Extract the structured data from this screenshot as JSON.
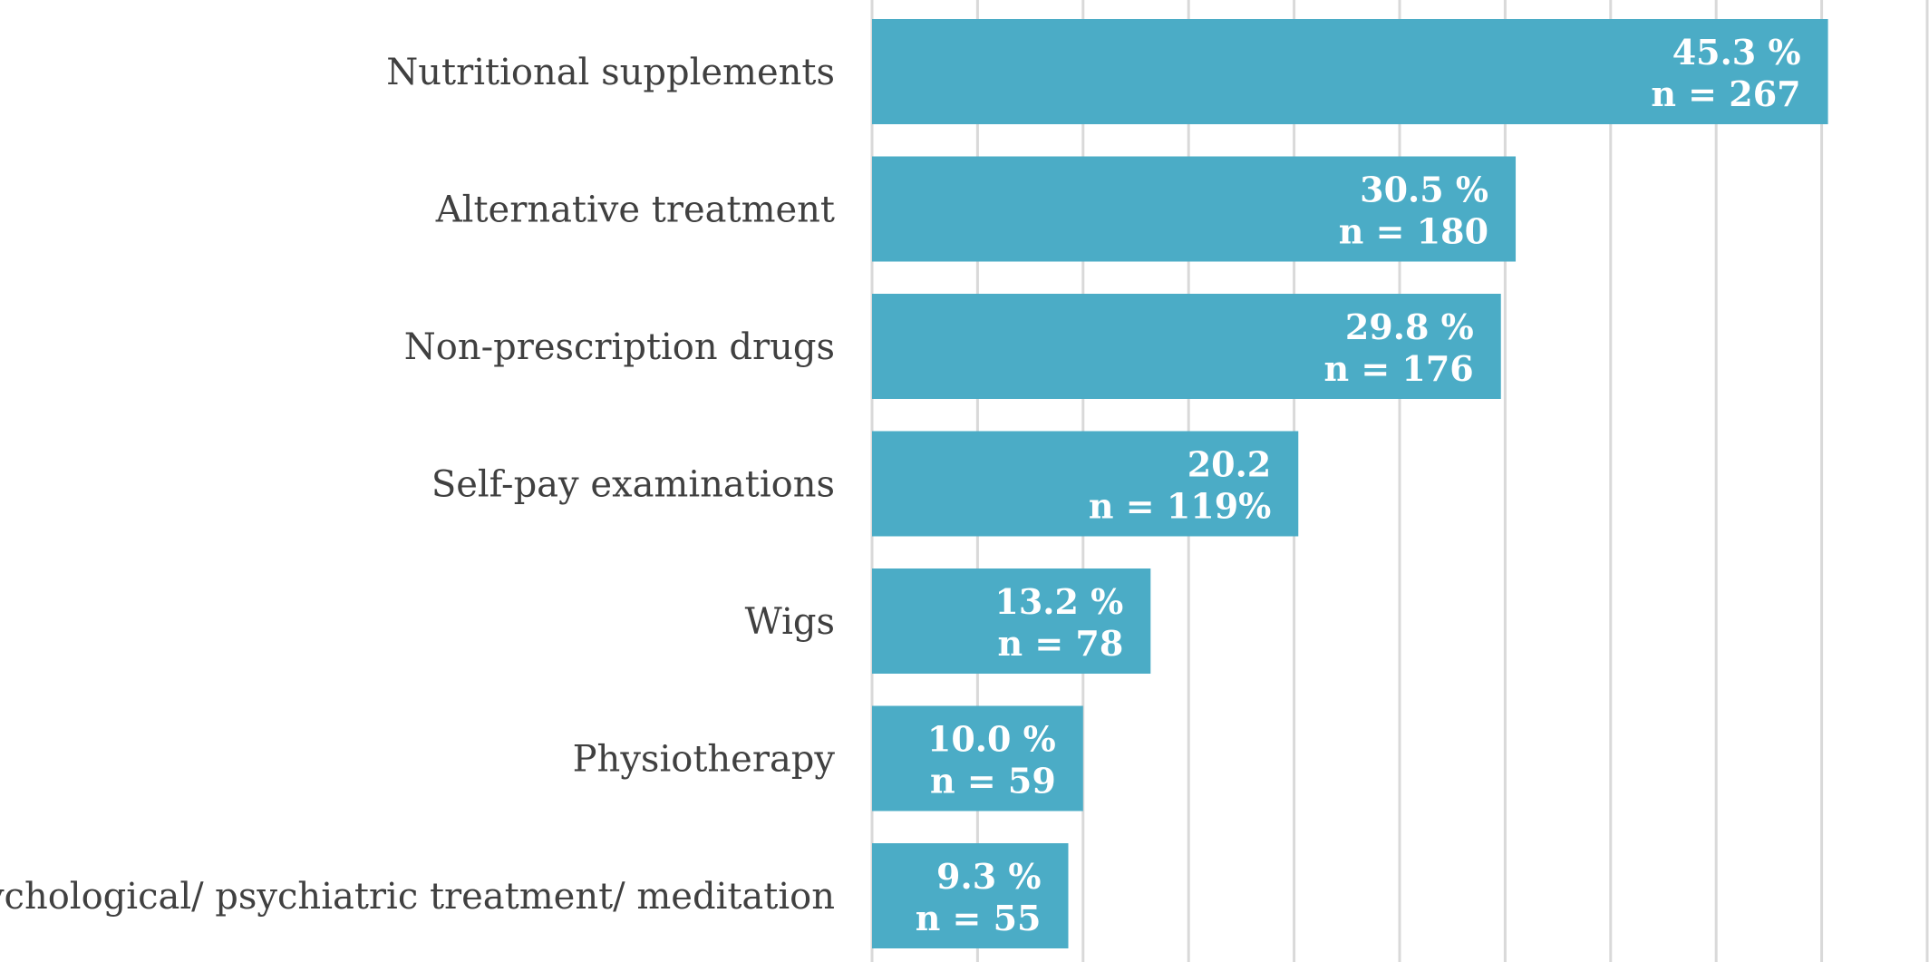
{
  "chart_data": {
    "type": "bar",
    "orientation": "horizontal",
    "categories": [
      "Nutritional supplements",
      "Alternative treatment",
      "Non-prescription drugs",
      "Self-pay examinations",
      "Wigs",
      "Physiotherapy",
      "Psychological/ psychiatric treatment/ meditation"
    ],
    "values": [
      45.3,
      30.5,
      29.8,
      20.2,
      13.2,
      10.0,
      9.3
    ],
    "data_labels": [
      [
        "45.3 %",
        "n = 267"
      ],
      [
        "30.5 %",
        "n = 180"
      ],
      [
        "29.8 %",
        "n = 176"
      ],
      [
        "20.2",
        "n = 119%"
      ],
      [
        "13.2 %",
        "n = 78"
      ],
      [
        "10.0 %",
        "n = 59"
      ],
      [
        "9.3 %",
        "n = 55"
      ]
    ],
    "xlim": [
      0,
      50
    ],
    "grid": "vertical",
    "legend": "none",
    "colors": {
      "bar": "#4BACC6",
      "grid": "#D9D9D9",
      "category_text": "#404040",
      "value_text": "#FFFFFF"
    }
  }
}
